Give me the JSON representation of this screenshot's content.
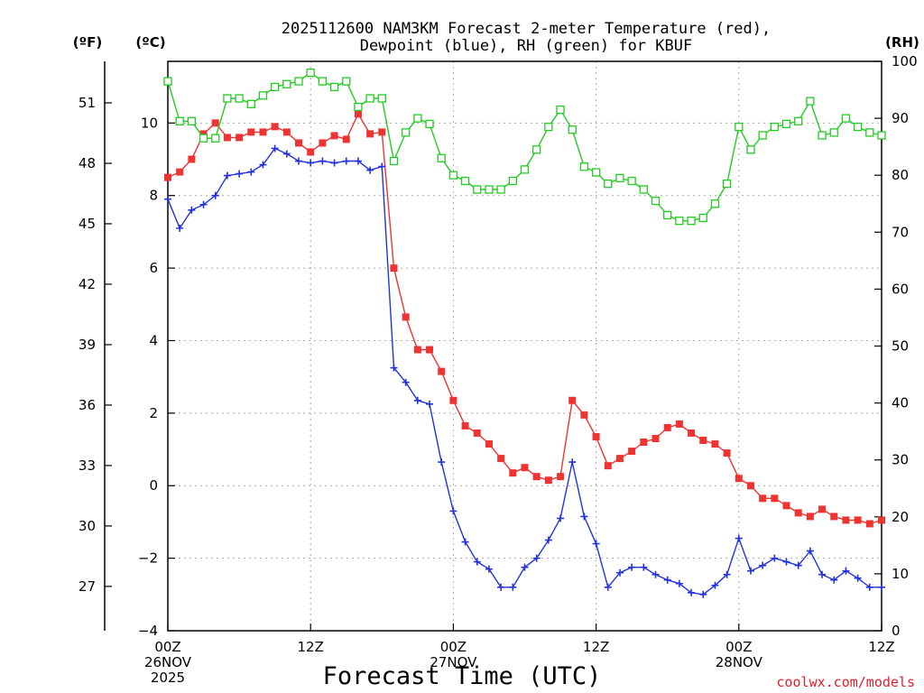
{
  "chart_data": {
    "type": "line",
    "title_line1": "2025112600 NAM3KM Forecast 2-meter Temperature (red),",
    "title_line2": "Dewpoint (blue), RH (green) for KBUF",
    "xlabel": "Forecast Time (UTC)",
    "credit": "coolwx.com/models",
    "units": {
      "fahrenheit": "(ºF)",
      "celsius": "(ºC)",
      "rh": "(RH)"
    },
    "x_range_hours": [
      0,
      60
    ],
    "y_celsius_range": [
      -4,
      11.7
    ],
    "y_rh_range": [
      0,
      100
    ],
    "x_ticks": [
      {
        "hour": 0,
        "lines": [
          "00Z",
          "26NOV",
          "2025"
        ]
      },
      {
        "hour": 12,
        "lines": [
          "12Z"
        ]
      },
      {
        "hour": 24,
        "lines": [
          "00Z",
          "27NOV"
        ]
      },
      {
        "hour": 36,
        "lines": [
          "12Z"
        ]
      },
      {
        "hour": 48,
        "lines": [
          "00Z",
          "28NOV"
        ]
      },
      {
        "hour": 60,
        "lines": [
          "12Z"
        ]
      }
    ],
    "celsius_ticks": [
      -4,
      -2,
      0,
      2,
      4,
      6,
      8,
      10
    ],
    "fahrenheit_ticks": [
      27,
      30,
      33,
      36,
      39,
      42,
      45,
      48,
      51
    ],
    "rh_ticks": [
      0,
      10,
      20,
      30,
      40,
      50,
      60,
      70,
      80,
      90,
      100
    ],
    "series": [
      {
        "name": "Temperature (°C)",
        "axis": "celsius",
        "color": "#ee3333",
        "marker": "filled-square",
        "values": [
          8.5,
          8.65,
          9.0,
          9.7,
          10.0,
          9.6,
          9.6,
          9.75,
          9.75,
          9.9,
          9.75,
          9.45,
          9.2,
          9.45,
          9.65,
          9.55,
          10.25,
          9.7,
          9.75,
          6.0,
          4.65,
          3.75,
          3.75,
          3.15,
          2.35,
          1.65,
          1.45,
          1.15,
          0.75,
          0.35,
          0.5,
          0.25,
          0.15,
          0.25,
          2.35,
          1.95,
          1.35,
          0.55,
          0.75,
          0.95,
          1.2,
          1.3,
          1.6,
          1.7,
          1.45,
          1.25,
          1.15,
          0.9,
          0.2,
          0.0,
          -0.35,
          -0.35,
          -0.55,
          -0.75,
          -0.85,
          -0.65,
          -0.85,
          -0.95,
          -0.95,
          -1.05,
          -0.95
        ]
      },
      {
        "name": "Dewpoint (°C)",
        "axis": "celsius",
        "color": "#2233dd",
        "marker": "plus",
        "values": [
          7.9,
          7.1,
          7.6,
          7.75,
          8.0,
          8.55,
          8.6,
          8.65,
          8.85,
          9.3,
          9.15,
          8.95,
          8.9,
          8.95,
          8.9,
          8.95,
          8.95,
          8.7,
          8.8,
          3.25,
          2.85,
          2.35,
          2.25,
          0.65,
          -0.7,
          -1.55,
          -2.1,
          -2.3,
          -2.8,
          -2.8,
          -2.25,
          -2.0,
          -1.5,
          -0.9,
          0.65,
          -0.85,
          -1.6,
          -2.8,
          -2.4,
          -2.25,
          -2.25,
          -2.45,
          -2.6,
          -2.7,
          -2.95,
          -3.0,
          -2.75,
          -2.45,
          -1.45,
          -2.35,
          -2.2,
          -2.0,
          -2.1,
          -2.2,
          -1.8,
          -2.45,
          -2.6,
          -2.35,
          -2.55,
          -2.8,
          -2.8
        ]
      },
      {
        "name": "RH (%)",
        "axis": "rh",
        "color": "#22cc22",
        "marker": "open-square",
        "values": [
          96.5,
          89.5,
          89.5,
          86.5,
          86.5,
          93.5,
          93.5,
          92.5,
          94,
          95.5,
          96,
          96.5,
          98,
          96.5,
          95.5,
          96.5,
          92,
          93.5,
          93.5,
          82.5,
          87.5,
          90,
          89,
          83,
          80,
          79,
          77.5,
          77.5,
          77.5,
          79,
          81,
          84.5,
          88.5,
          91.5,
          88,
          81.5,
          80.5,
          78.5,
          79.5,
          79,
          77.5,
          75.5,
          73,
          72,
          72,
          72.5,
          75,
          78.5,
          88.5,
          84.5,
          87,
          88.5,
          89,
          89.5,
          93,
          87,
          87.5,
          90,
          88.5,
          87.5,
          87
        ]
      }
    ]
  }
}
